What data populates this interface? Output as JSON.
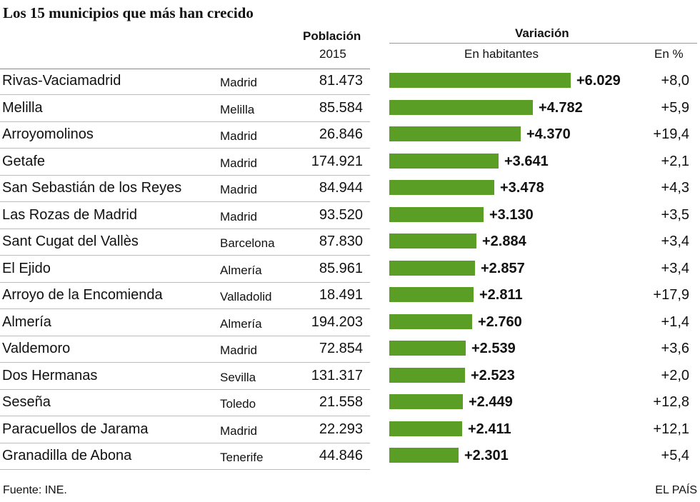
{
  "title": "Los 15 municipios que más han crecido",
  "headers": {
    "population": "Población",
    "population_year": "2015",
    "variation": "Variación",
    "abs": "En habitantes",
    "pct": "En %"
  },
  "chart_data": {
    "type": "bar",
    "title": "Los 15 municipios que más han crecido",
    "orientation": "horizontal",
    "xlim": [
      0,
      6029
    ],
    "rows": [
      {
        "municipio": "Rivas-Vaciamadrid",
        "provincia": "Madrid",
        "poblacion": "81.473",
        "variacion": 6029,
        "variacion_label": "+6.029",
        "pct": "+8,0"
      },
      {
        "municipio": "Melilla",
        "provincia": "Melilla",
        "poblacion": "85.584",
        "variacion": 4782,
        "variacion_label": "+4.782",
        "pct": "+5,9"
      },
      {
        "municipio": "Arroyomolinos",
        "provincia": "Madrid",
        "poblacion": "26.846",
        "variacion": 4370,
        "variacion_label": "+4.370",
        "pct": "+19,4"
      },
      {
        "municipio": "Getafe",
        "provincia": "Madrid",
        "poblacion": "174.921",
        "variacion": 3641,
        "variacion_label": "+3.641",
        "pct": "+2,1"
      },
      {
        "municipio": "San Sebastián de los Reyes",
        "provincia": "Madrid",
        "poblacion": "84.944",
        "variacion": 3478,
        "variacion_label": "+3.478",
        "pct": "+4,3"
      },
      {
        "municipio": "Las Rozas de Madrid",
        "provincia": "Madrid",
        "poblacion": "93.520",
        "variacion": 3130,
        "variacion_label": "+3.130",
        "pct": "+3,5"
      },
      {
        "municipio": "Sant Cugat del Vallès",
        "provincia": "Barcelona",
        "poblacion": "87.830",
        "variacion": 2884,
        "variacion_label": "+2.884",
        "pct": "+3,4"
      },
      {
        "municipio": "El Ejido",
        "provincia": "Almería",
        "poblacion": "85.961",
        "variacion": 2857,
        "variacion_label": "+2.857",
        "pct": "+3,4"
      },
      {
        "municipio": "Arroyo de la Encomienda",
        "provincia": "Valladolid",
        "poblacion": "18.491",
        "variacion": 2811,
        "variacion_label": "+2.811",
        "pct": "+17,9"
      },
      {
        "municipio": "Almería",
        "provincia": "Almería",
        "poblacion": "194.203",
        "variacion": 2760,
        "variacion_label": "+2.760",
        "pct": "+1,4"
      },
      {
        "municipio": "Valdemoro",
        "provincia": "Madrid",
        "poblacion": "72.854",
        "variacion": 2539,
        "variacion_label": "+2.539",
        "pct": "+3,6"
      },
      {
        "municipio": "Dos Hermanas",
        "provincia": "Sevilla",
        "poblacion": "131.317",
        "variacion": 2523,
        "variacion_label": "+2.523",
        "pct": "+2,0"
      },
      {
        "municipio": "Seseña",
        "provincia": "Toledo",
        "poblacion": "21.558",
        "variacion": 2449,
        "variacion_label": "+2.449",
        "pct": "+12,8"
      },
      {
        "municipio": "Paracuellos de Jarama",
        "provincia": "Madrid",
        "poblacion": "22.293",
        "variacion": 2411,
        "variacion_label": "+2.411",
        "pct": "+12,1"
      },
      {
        "municipio": "Granadilla de Abona",
        "provincia": "Tenerife",
        "poblacion": "44.846",
        "variacion": 2301,
        "variacion_label": "+2.301",
        "pct": "+5,4"
      }
    ],
    "bar_color": "#5a9e26"
  },
  "footer": {
    "source": "Fuente: INE.",
    "brand": "EL PAÍS"
  }
}
